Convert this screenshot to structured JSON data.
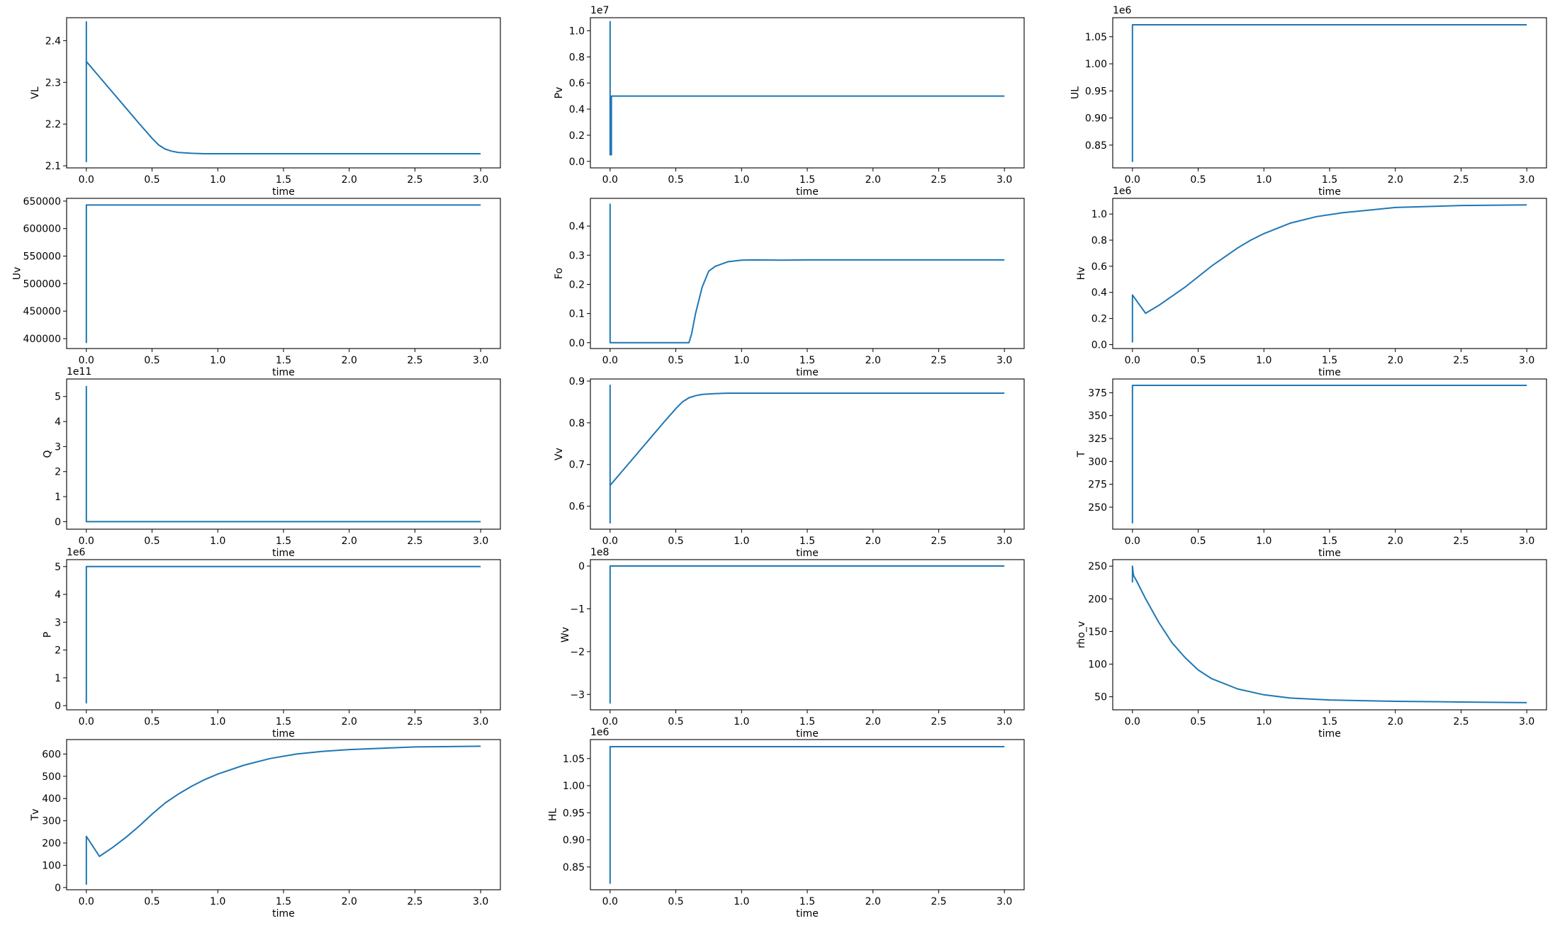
{
  "chart_data": [
    {
      "type": "line",
      "ylabel": "VL",
      "xlabel": "time",
      "xlim": [
        -0.15,
        3.15
      ],
      "ylim": [
        2.095,
        2.455
      ],
      "xticks": [
        "0.0",
        "0.5",
        "1.0",
        "1.5",
        "2.0",
        "2.5",
        "3.0"
      ],
      "yticks": [
        "2.1",
        "2.2",
        "2.3",
        "2.4"
      ],
      "offset": "",
      "series": [
        {
          "color": "#1f77b4",
          "x": [
            0,
            0,
            0,
            0,
            0.1,
            0.2,
            0.3,
            0.4,
            0.5,
            0.55,
            0.6,
            0.65,
            0.7,
            0.8,
            0.9,
            1.0,
            1.5,
            2.0,
            2.5,
            3.0
          ],
          "y": [
            2.35,
            2.11,
            2.445,
            2.35,
            2.313,
            2.276,
            2.239,
            2.202,
            2.166,
            2.15,
            2.14,
            2.135,
            2.132,
            2.13,
            2.129,
            2.129,
            2.129,
            2.129,
            2.129,
            2.129
          ]
        }
      ]
    },
    {
      "type": "line",
      "ylabel": "Pv",
      "xlabel": "time",
      "xlim": [
        -0.15,
        3.15
      ],
      "ylim": [
        -0.05,
        1.1
      ],
      "xticks": [
        "0.0",
        "0.5",
        "1.0",
        "1.5",
        "2.0",
        "2.5",
        "3.0"
      ],
      "yticks": [
        "0.0",
        "0.2",
        "0.4",
        "0.6",
        "0.8",
        "1.0"
      ],
      "offset": "1e7",
      "series": [
        {
          "color": "#1f77b4",
          "x": [
            0,
            0,
            0,
            0,
            0.01,
            0.01,
            3.0
          ],
          "y": [
            0.5,
            0.05,
            1.07,
            0.5,
            0.05,
            0.5,
            0.5
          ]
        }
      ]
    },
    {
      "type": "line",
      "ylabel": "UL",
      "xlabel": "time",
      "xlim": [
        -0.15,
        3.15
      ],
      "ylim": [
        0.808,
        1.085
      ],
      "xticks": [
        "0.0",
        "0.5",
        "1.0",
        "1.5",
        "2.0",
        "2.5",
        "3.0"
      ],
      "yticks": [
        "0.85",
        "0.90",
        "0.95",
        "1.00",
        "1.05"
      ],
      "offset": "1e6",
      "series": [
        {
          "color": "#1f77b4",
          "x": [
            0,
            0,
            0,
            3.0
          ],
          "y": [
            1.072,
            0.82,
            1.072,
            1.072
          ]
        }
      ]
    },
    {
      "type": "line",
      "ylabel": "Uv",
      "xlabel": "time",
      "xlim": [
        -0.15,
        3.15
      ],
      "ylim": [
        382000,
        655000
      ],
      "xticks": [
        "0.0",
        "0.5",
        "1.0",
        "1.5",
        "2.0",
        "2.5",
        "3.0"
      ],
      "yticks": [
        "400000",
        "450000",
        "500000",
        "550000",
        "600000",
        "650000"
      ],
      "offset": "",
      "series": [
        {
          "color": "#1f77b4",
          "x": [
            0,
            0,
            0,
            3.0
          ],
          "y": [
            643000,
            393000,
            643000,
            643000
          ]
        }
      ]
    },
    {
      "type": "line",
      "ylabel": "Fo",
      "xlabel": "time",
      "xlim": [
        -0.15,
        3.15
      ],
      "ylim": [
        -0.02,
        0.495
      ],
      "xticks": [
        "0.0",
        "0.5",
        "1.0",
        "1.5",
        "2.0",
        "2.5",
        "3.0"
      ],
      "yticks": [
        "0.0",
        "0.1",
        "0.2",
        "0.3",
        "0.4"
      ],
      "offset": "",
      "series": [
        {
          "color": "#1f77b4",
          "x": [
            0,
            0,
            0,
            0.6,
            0.62,
            0.65,
            0.7,
            0.75,
            0.8,
            0.9,
            1.0,
            1.1,
            1.3,
            1.5,
            2.0,
            2.5,
            3.0
          ],
          "y": [
            0,
            0.475,
            0,
            0,
            0.03,
            0.1,
            0.19,
            0.245,
            0.262,
            0.278,
            0.283,
            0.284,
            0.283,
            0.284,
            0.284,
            0.284,
            0.284
          ]
        }
      ]
    },
    {
      "type": "line",
      "ylabel": "Hv",
      "xlabel": "time",
      "xlim": [
        -0.15,
        3.15
      ],
      "ylim": [
        -0.03,
        1.12
      ],
      "xticks": [
        "0.0",
        "0.5",
        "1.0",
        "1.5",
        "2.0",
        "2.5",
        "3.0"
      ],
      "yticks": [
        "0.0",
        "0.2",
        "0.4",
        "0.6",
        "0.8",
        "1.0"
      ],
      "offset": "1e6",
      "series": [
        {
          "color": "#1f77b4",
          "x": [
            0,
            0,
            0,
            0.1,
            0.2,
            0.3,
            0.4,
            0.5,
            0.6,
            0.7,
            0.8,
            0.9,
            1.0,
            1.2,
            1.4,
            1.6,
            1.8,
            2.0,
            2.5,
            3.0
          ],
          "y": [
            0.2,
            0.02,
            0.38,
            0.24,
            0.3,
            0.37,
            0.44,
            0.52,
            0.6,
            0.67,
            0.74,
            0.8,
            0.85,
            0.93,
            0.98,
            1.01,
            1.03,
            1.05,
            1.065,
            1.07
          ]
        }
      ]
    },
    {
      "type": "line",
      "ylabel": "Q",
      "xlabel": "time",
      "xlim": [
        -0.15,
        3.15
      ],
      "ylim": [
        -0.3,
        5.7
      ],
      "xticks": [
        "0.0",
        "0.5",
        "1.0",
        "1.5",
        "2.0",
        "2.5",
        "3.0"
      ],
      "yticks": [
        "0",
        "1",
        "2",
        "3",
        "4",
        "5"
      ],
      "offset": "1e11",
      "series": [
        {
          "color": "#1f77b4",
          "x": [
            0,
            0,
            0,
            3.0
          ],
          "y": [
            0,
            5.4,
            0,
            0
          ]
        }
      ]
    },
    {
      "type": "line",
      "ylabel": "Vv",
      "xlabel": "time",
      "xlim": [
        -0.15,
        3.15
      ],
      "ylim": [
        0.545,
        0.905
      ],
      "xticks": [
        "0.0",
        "0.5",
        "1.0",
        "1.5",
        "2.0",
        "2.5",
        "3.0"
      ],
      "yticks": [
        "0.6",
        "0.7",
        "0.8",
        "0.9"
      ],
      "offset": "",
      "series": [
        {
          "color": "#1f77b4",
          "x": [
            0,
            0,
            0,
            0,
            0.1,
            0.2,
            0.3,
            0.4,
            0.5,
            0.55,
            0.6,
            0.65,
            0.7,
            0.8,
            0.9,
            1.0,
            1.5,
            2.0,
            2.5,
            3.0
          ],
          "y": [
            0.65,
            0.56,
            0.89,
            0.65,
            0.687,
            0.724,
            0.761,
            0.798,
            0.834,
            0.85,
            0.86,
            0.865,
            0.868,
            0.87,
            0.871,
            0.871,
            0.871,
            0.871,
            0.871,
            0.871
          ]
        }
      ]
    },
    {
      "type": "line",
      "ylabel": "T",
      "xlabel": "time",
      "xlim": [
        -0.15,
        3.15
      ],
      "ylim": [
        226,
        390
      ],
      "xticks": [
        "0.0",
        "0.5",
        "1.0",
        "1.5",
        "2.0",
        "2.5",
        "3.0"
      ],
      "yticks": [
        "250",
        "275",
        "300",
        "325",
        "350",
        "375"
      ],
      "offset": "",
      "series": [
        {
          "color": "#1f77b4",
          "x": [
            0,
            0,
            0,
            3.0
          ],
          "y": [
            383,
            233,
            383,
            383
          ]
        }
      ]
    },
    {
      "type": "line",
      "ylabel": "P",
      "xlabel": "time",
      "xlim": [
        -0.15,
        3.15
      ],
      "ylim": [
        -0.15,
        5.25
      ],
      "xticks": [
        "0.0",
        "0.5",
        "1.0",
        "1.5",
        "2.0",
        "2.5",
        "3.0"
      ],
      "yticks": [
        "0",
        "1",
        "2",
        "3",
        "4",
        "5"
      ],
      "offset": "1e6",
      "series": [
        {
          "color": "#1f77b4",
          "x": [
            0,
            0,
            0,
            3.0
          ],
          "y": [
            5.0,
            0.1,
            5.0,
            5.0
          ]
        }
      ]
    },
    {
      "type": "line",
      "ylabel": "Wv",
      "xlabel": "time",
      "xlim": [
        -0.15,
        3.15
      ],
      "ylim": [
        -3.36,
        0.15
      ],
      "xticks": [
        "0.0",
        "0.5",
        "1.0",
        "1.5",
        "2.0",
        "2.5",
        "3.0"
      ],
      "yticks": [
        "−3",
        "−2",
        "−1",
        "0"
      ],
      "offset": "1e8",
      "series": [
        {
          "color": "#1f77b4",
          "x": [
            0,
            0,
            0,
            3.0
          ],
          "y": [
            0,
            -3.2,
            0,
            0
          ]
        }
      ]
    },
    {
      "type": "line",
      "ylabel": "rho_v",
      "xlabel": "time",
      "xlim": [
        -0.15,
        3.15
      ],
      "ylim": [
        30,
        260
      ],
      "xticks": [
        "0.0",
        "0.5",
        "1.0",
        "1.5",
        "2.0",
        "2.5",
        "3.0"
      ],
      "yticks": [
        "50",
        "100",
        "150",
        "200",
        "250"
      ],
      "offset": "",
      "series": [
        {
          "color": "#1f77b4",
          "x": [
            0,
            0,
            0.005,
            0.01,
            0.03,
            0.05,
            0.1,
            0.2,
            0.3,
            0.4,
            0.5,
            0.6,
            0.8,
            1.0,
            1.2,
            1.5,
            2.0,
            2.5,
            3.0
          ],
          "y": [
            225,
            250,
            240,
            235,
            228,
            220,
            200,
            164,
            133,
            110,
            91,
            78,
            62,
            53,
            48,
            45,
            43,
            42,
            41
          ]
        }
      ]
    },
    {
      "type": "line",
      "ylabel": "Tv",
      "xlabel": "time",
      "xlim": [
        -0.15,
        3.15
      ],
      "ylim": [
        -10,
        665
      ],
      "xticks": [
        "0.0",
        "0.5",
        "1.0",
        "1.5",
        "2.0",
        "2.5",
        "3.0"
      ],
      "yticks": [
        "0",
        "100",
        "200",
        "300",
        "400",
        "500",
        "600"
      ],
      "offset": "",
      "series": [
        {
          "color": "#1f77b4",
          "x": [
            0,
            0,
            0,
            0.1,
            0.2,
            0.3,
            0.4,
            0.5,
            0.6,
            0.7,
            0.8,
            0.9,
            1.0,
            1.2,
            1.4,
            1.6,
            1.8,
            2.0,
            2.5,
            3.0
          ],
          "y": [
            120,
            15,
            230,
            140,
            180,
            225,
            275,
            330,
            380,
            420,
            455,
            485,
            510,
            550,
            580,
            600,
            612,
            620,
            632,
            635
          ]
        }
      ]
    },
    {
      "type": "line",
      "ylabel": "HL",
      "xlabel": "time",
      "xlim": [
        -0.15,
        3.15
      ],
      "ylim": [
        0.808,
        1.085
      ],
      "xticks": [
        "0.0",
        "0.5",
        "1.0",
        "1.5",
        "2.0",
        "2.5",
        "3.0"
      ],
      "yticks": [
        "0.85",
        "0.90",
        "0.95",
        "1.00",
        "1.05"
      ],
      "offset": "1e6",
      "series": [
        {
          "color": "#1f77b4",
          "x": [
            0,
            0,
            0,
            3.0
          ],
          "y": [
            1.072,
            0.82,
            1.072,
            1.072
          ]
        }
      ]
    }
  ]
}
